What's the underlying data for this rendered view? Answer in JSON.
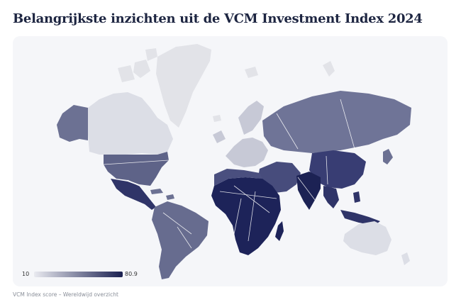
{
  "title": "Belangrijkste inzichten uit de VCM Investment Index 2024",
  "legend": {
    "min": "10",
    "max": "80.9",
    "color_low": "#e9eaf0",
    "color_high": "#1a2050"
  },
  "caption": "VCM Index score – Wereldwijd overzicht",
  "colors": {
    "card_background": "#f5f6f9",
    "no_data": "#e2e3e8",
    "low": "#d9dbe4",
    "mid": "#6c7193",
    "high": "#2b2f66",
    "highest": "#1a2050"
  }
}
